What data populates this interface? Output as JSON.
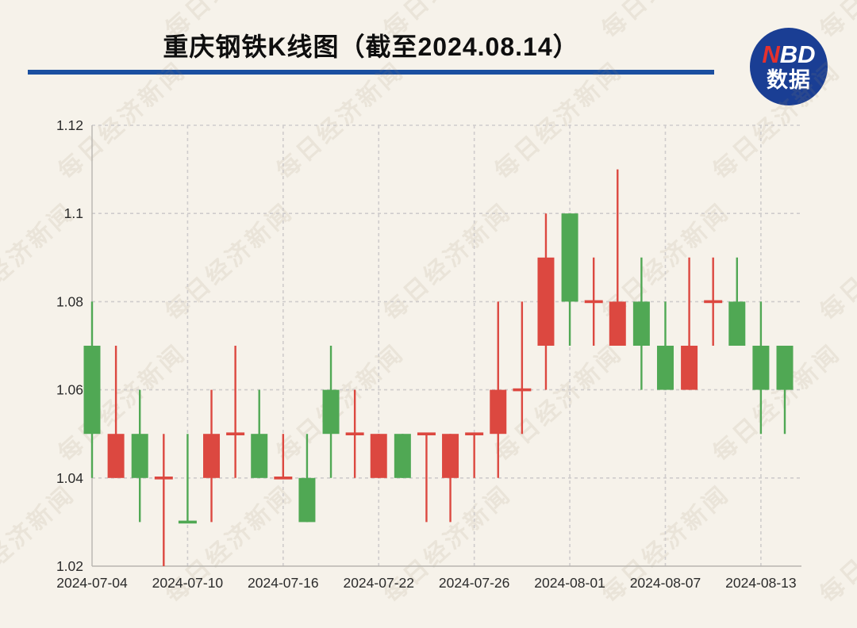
{
  "page": {
    "background": "#f6f2ea"
  },
  "header": {
    "title": "重庆钢铁K线图（截至2024.08.14）",
    "rule_color": "#1b4fa0",
    "logo": {
      "line1_accent": "N",
      "line1_rest": "BD",
      "line2": "数据",
      "bg_color": "#1a3e94",
      "accent_color": "#e5312d"
    }
  },
  "watermark": {
    "text": "每日经济新闻"
  },
  "chart_data": {
    "type": "candlestick",
    "title": "重庆钢铁K线图（截至2024.08.14）",
    "up_color": "#dc4840",
    "down_color": "#50a854",
    "grid_color": "#cfcccc",
    "axis_color": "#b8b5b0",
    "label_color": "#2b2b2b",
    "ylim": [
      1.02,
      1.12
    ],
    "y_ticks": [
      "1.02",
      "1.04",
      "1.06",
      "1.08",
      "1.1",
      "1.12"
    ],
    "x_tick_indices": [
      0,
      4,
      8,
      12,
      16,
      20,
      24,
      28
    ],
    "x_tick_labels": [
      "2024-07-04",
      "2024-07-10",
      "2024-07-16",
      "2024-07-22",
      "2024-07-26",
      "2024-08-01",
      "2024-08-07",
      "2024-08-13"
    ],
    "legend_position": "none",
    "grid": "dashed",
    "candles": [
      {
        "date": "2024-07-04",
        "open": 1.07,
        "close": 1.05,
        "high": 1.08,
        "low": 1.04,
        "dir": "down"
      },
      {
        "date": "2024-07-05",
        "open": 1.04,
        "close": 1.05,
        "high": 1.07,
        "low": 1.04,
        "dir": "up"
      },
      {
        "date": "2024-07-08",
        "open": 1.05,
        "close": 1.04,
        "high": 1.06,
        "low": 1.03,
        "dir": "down"
      },
      {
        "date": "2024-07-09",
        "open": 1.04,
        "close": 1.04,
        "high": 1.05,
        "low": 1.02,
        "dir": "up"
      },
      {
        "date": "2024-07-10",
        "open": 1.03,
        "close": 1.03,
        "high": 1.05,
        "low": 1.03,
        "dir": "down"
      },
      {
        "date": "2024-07-11",
        "open": 1.04,
        "close": 1.05,
        "high": 1.06,
        "low": 1.03,
        "dir": "up"
      },
      {
        "date": "2024-07-12",
        "open": 1.05,
        "close": 1.05,
        "high": 1.07,
        "low": 1.04,
        "dir": "up"
      },
      {
        "date": "2024-07-15",
        "open": 1.05,
        "close": 1.04,
        "high": 1.06,
        "low": 1.04,
        "dir": "down"
      },
      {
        "date": "2024-07-16",
        "open": 1.04,
        "close": 1.04,
        "high": 1.05,
        "low": 1.04,
        "dir": "up"
      },
      {
        "date": "2024-07-17",
        "open": 1.04,
        "close": 1.03,
        "high": 1.05,
        "low": 1.03,
        "dir": "down"
      },
      {
        "date": "2024-07-18",
        "open": 1.06,
        "close": 1.05,
        "high": 1.07,
        "low": 1.04,
        "dir": "down"
      },
      {
        "date": "2024-07-19",
        "open": 1.05,
        "close": 1.05,
        "high": 1.06,
        "low": 1.04,
        "dir": "up"
      },
      {
        "date": "2024-07-22",
        "open": 1.04,
        "close": 1.05,
        "high": 1.05,
        "low": 1.04,
        "dir": "up"
      },
      {
        "date": "2024-07-23",
        "open": 1.05,
        "close": 1.04,
        "high": 1.05,
        "low": 1.04,
        "dir": "down"
      },
      {
        "date": "2024-07-24",
        "open": 1.05,
        "close": 1.05,
        "high": 1.05,
        "low": 1.03,
        "dir": "up"
      },
      {
        "date": "2024-07-25",
        "open": 1.04,
        "close": 1.05,
        "high": 1.05,
        "low": 1.03,
        "dir": "up"
      },
      {
        "date": "2024-07-26",
        "open": 1.05,
        "close": 1.05,
        "high": 1.05,
        "low": 1.04,
        "dir": "up"
      },
      {
        "date": "2024-07-29",
        "open": 1.05,
        "close": 1.06,
        "high": 1.08,
        "low": 1.04,
        "dir": "up"
      },
      {
        "date": "2024-07-30",
        "open": 1.06,
        "close": 1.06,
        "high": 1.08,
        "low": 1.05,
        "dir": "up"
      },
      {
        "date": "2024-07-31",
        "open": 1.07,
        "close": 1.09,
        "high": 1.1,
        "low": 1.06,
        "dir": "up"
      },
      {
        "date": "2024-08-01",
        "open": 1.1,
        "close": 1.08,
        "high": 1.1,
        "low": 1.07,
        "dir": "down"
      },
      {
        "date": "2024-08-02",
        "open": 1.08,
        "close": 1.08,
        "high": 1.09,
        "low": 1.07,
        "dir": "up"
      },
      {
        "date": "2024-08-05",
        "open": 1.07,
        "close": 1.08,
        "high": 1.11,
        "low": 1.07,
        "dir": "up"
      },
      {
        "date": "2024-08-06",
        "open": 1.08,
        "close": 1.07,
        "high": 1.09,
        "low": 1.06,
        "dir": "down"
      },
      {
        "date": "2024-08-07",
        "open": 1.07,
        "close": 1.06,
        "high": 1.08,
        "low": 1.06,
        "dir": "down"
      },
      {
        "date": "2024-08-08",
        "open": 1.06,
        "close": 1.07,
        "high": 1.09,
        "low": 1.06,
        "dir": "up"
      },
      {
        "date": "2024-08-09",
        "open": 1.08,
        "close": 1.08,
        "high": 1.09,
        "low": 1.07,
        "dir": "up"
      },
      {
        "date": "2024-08-12",
        "open": 1.08,
        "close": 1.07,
        "high": 1.09,
        "low": 1.07,
        "dir": "down"
      },
      {
        "date": "2024-08-13",
        "open": 1.07,
        "close": 1.06,
        "high": 1.08,
        "low": 1.05,
        "dir": "down"
      },
      {
        "date": "2024-08-14",
        "open": 1.07,
        "close": 1.06,
        "high": 1.07,
        "low": 1.05,
        "dir": "down"
      }
    ]
  }
}
